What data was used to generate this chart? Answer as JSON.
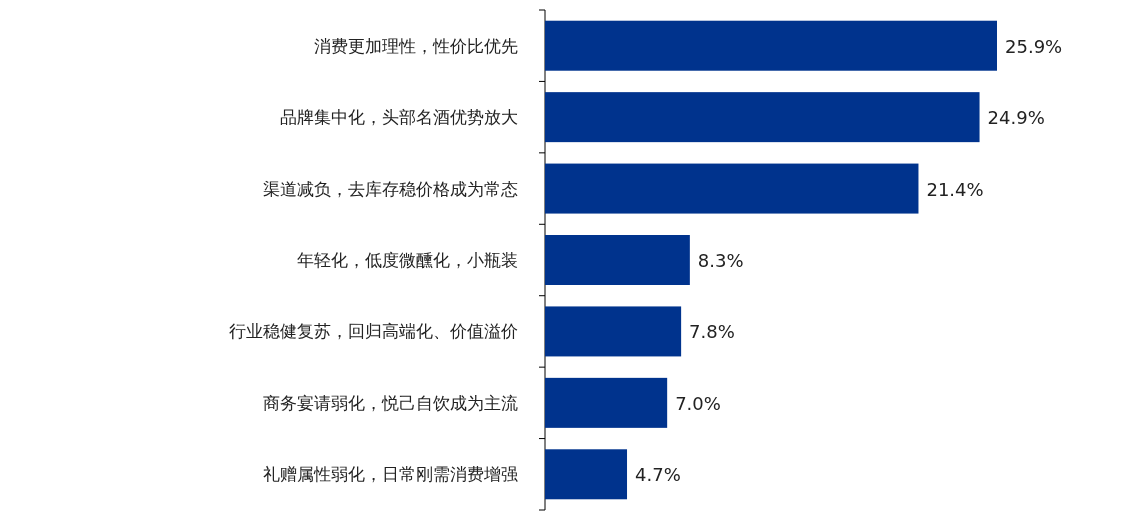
{
  "chart_data": {
    "type": "bar",
    "orientation": "horizontal",
    "color": "#00338d",
    "value_labels": [
      "25.9%",
      "24.9%",
      "21.4%",
      "8.3%",
      "7.8%",
      "7.0%",
      "4.7%"
    ],
    "categories": [
      "消费更加理性，性价比优先",
      "品牌集中化，头部名酒优势放大",
      "渠道减负，去库存稳价格成为常态",
      "年轻化，低度微醺化，小瓶装",
      "行业稳健复苏，回归高端化、价值溢价",
      "商务宴请弱化，悦己自饮成为主流",
      "礼赠属性弱化，日常刚需消费增强"
    ],
    "values": [
      25.9,
      24.9,
      21.4,
      8.3,
      7.8,
      7.0,
      4.7
    ]
  }
}
